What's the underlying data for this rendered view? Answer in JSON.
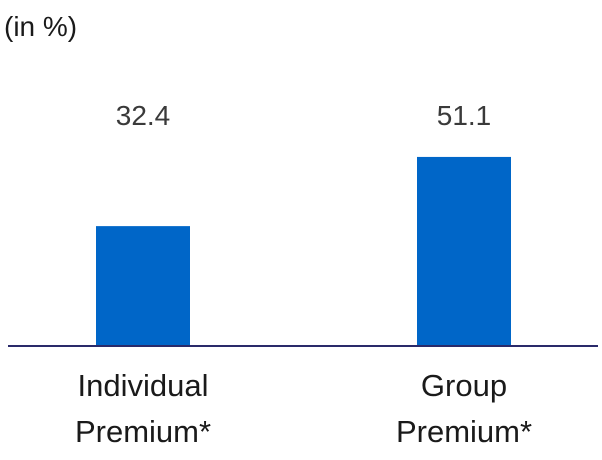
{
  "chart_data": {
    "type": "bar",
    "unit_label": "(in %)",
    "categories": [
      [
        "Individual",
        "Premium*"
      ],
      [
        "Group",
        "Premium*"
      ]
    ],
    "values": [
      32.4,
      51.1
    ],
    "value_labels": [
      "32.4",
      "51.1"
    ],
    "colors": {
      "bar": "#0066c8",
      "axis": "#2a2a6a"
    }
  }
}
